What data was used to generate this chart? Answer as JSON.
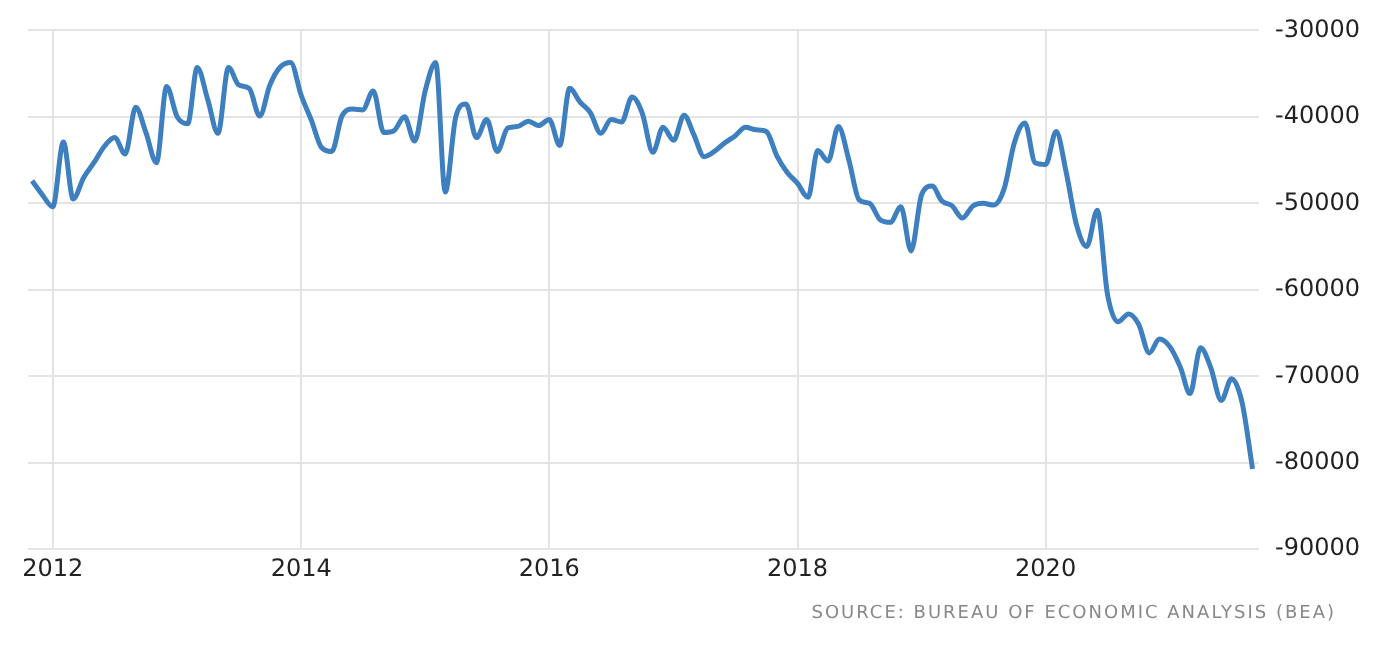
{
  "chart_data": {
    "type": "line",
    "x": [
      "2011-11",
      "2011-12",
      "2012-01",
      "2012-02",
      "2012-03",
      "2012-04",
      "2012-05",
      "2012-06",
      "2012-07",
      "2012-08",
      "2012-09",
      "2012-10",
      "2012-11",
      "2012-12",
      "2013-01",
      "2013-02",
      "2013-03",
      "2013-04",
      "2013-05",
      "2013-06",
      "2013-07",
      "2013-08",
      "2013-09",
      "2013-10",
      "2013-11",
      "2013-12",
      "2014-01",
      "2014-02",
      "2014-03",
      "2014-04",
      "2014-05",
      "2014-06",
      "2014-07",
      "2014-08",
      "2014-09",
      "2014-10",
      "2014-11",
      "2014-12",
      "2015-01",
      "2015-02",
      "2015-03",
      "2015-04",
      "2015-05",
      "2015-06",
      "2015-07",
      "2015-08",
      "2015-09",
      "2015-10",
      "2015-11",
      "2015-12",
      "2016-01",
      "2016-02",
      "2016-03",
      "2016-04",
      "2016-05",
      "2016-06",
      "2016-07",
      "2016-08",
      "2016-09",
      "2016-10",
      "2016-11",
      "2016-12",
      "2017-01",
      "2017-02",
      "2017-03",
      "2017-04",
      "2017-05",
      "2017-06",
      "2017-07",
      "2017-08",
      "2017-09",
      "2017-10",
      "2017-11",
      "2017-12",
      "2018-01",
      "2018-02",
      "2018-03",
      "2018-04",
      "2018-05",
      "2018-06",
      "2018-07",
      "2018-08",
      "2018-09",
      "2018-10",
      "2018-11",
      "2018-12",
      "2019-01",
      "2019-02",
      "2019-03",
      "2019-04",
      "2019-05",
      "2019-06",
      "2019-07",
      "2019-08",
      "2019-09",
      "2019-10",
      "2019-11",
      "2019-12",
      "2020-01",
      "2020-02",
      "2020-03",
      "2020-04",
      "2020-05",
      "2020-06",
      "2020-07",
      "2020-08",
      "2020-09",
      "2020-10",
      "2020-11",
      "2020-12",
      "2021-01",
      "2021-02",
      "2021-03",
      "2021-04",
      "2021-05",
      "2021-06",
      "2021-07",
      "2021-08",
      "2021-09"
    ],
    "series": [
      {
        "color": "#3d7fbf",
        "values": [
          -47400,
          -49000,
          -50400,
          -42900,
          -49500,
          -47000,
          -45300,
          -43400,
          -42400,
          -44300,
          -38900,
          -41800,
          -45300,
          -36500,
          -40000,
          -40800,
          -34300,
          -38000,
          -41900,
          -34300,
          -36300,
          -36700,
          -39900,
          -36300,
          -34200,
          -33700,
          -37500,
          -40500,
          -43500,
          -44000,
          -39900,
          -39100,
          -39200,
          -37000,
          -41800,
          -41600,
          -40000,
          -42800,
          -37000,
          -33700,
          -48700,
          -40000,
          -38500,
          -42400,
          -40300,
          -44000,
          -41300,
          -41100,
          -40500,
          -41000,
          -40300,
          -43300,
          -36700,
          -38300,
          -39500,
          -41900,
          -40300,
          -40600,
          -37700,
          -39600,
          -44100,
          -41200,
          -42700,
          -39800,
          -42000,
          -44600,
          -44000,
          -43000,
          -42200,
          -41200,
          -41500,
          -41700,
          -44500,
          -46400,
          -47700,
          -49300,
          -43900,
          -45100,
          -41100,
          -45000,
          -49600,
          -50000,
          -51900,
          -52200,
          -50400,
          -55500,
          -49000,
          -48000,
          -49700,
          -50300,
          -51700,
          -50300,
          -50000,
          -50200,
          -48300,
          -43000,
          -40700,
          -45300,
          -45500,
          -41700,
          -46300,
          -52500,
          -55000,
          -50800,
          -60500,
          -63700,
          -62800,
          -64000,
          -67300,
          -65700,
          -66600,
          -69000,
          -72000,
          -66700,
          -69000,
          -72800,
          -70300,
          -73000,
          -80700
        ]
      }
    ],
    "xlim": [
      "2011-10-20",
      "2021-09-20"
    ],
    "xticks": [
      "2012",
      "2014",
      "2016",
      "2018",
      "2020"
    ],
    "ylim": [
      -90000,
      -30000
    ],
    "yticks": [
      -90000,
      -80000,
      -70000,
      -60000,
      -50000,
      -40000,
      -30000
    ],
    "grid": true,
    "legend": false,
    "marker": "none",
    "line_style": "solid",
    "annotations": [
      "SOURCE: BUREAU OF ECONOMIC ANALYSIS (BEA)"
    ]
  }
}
